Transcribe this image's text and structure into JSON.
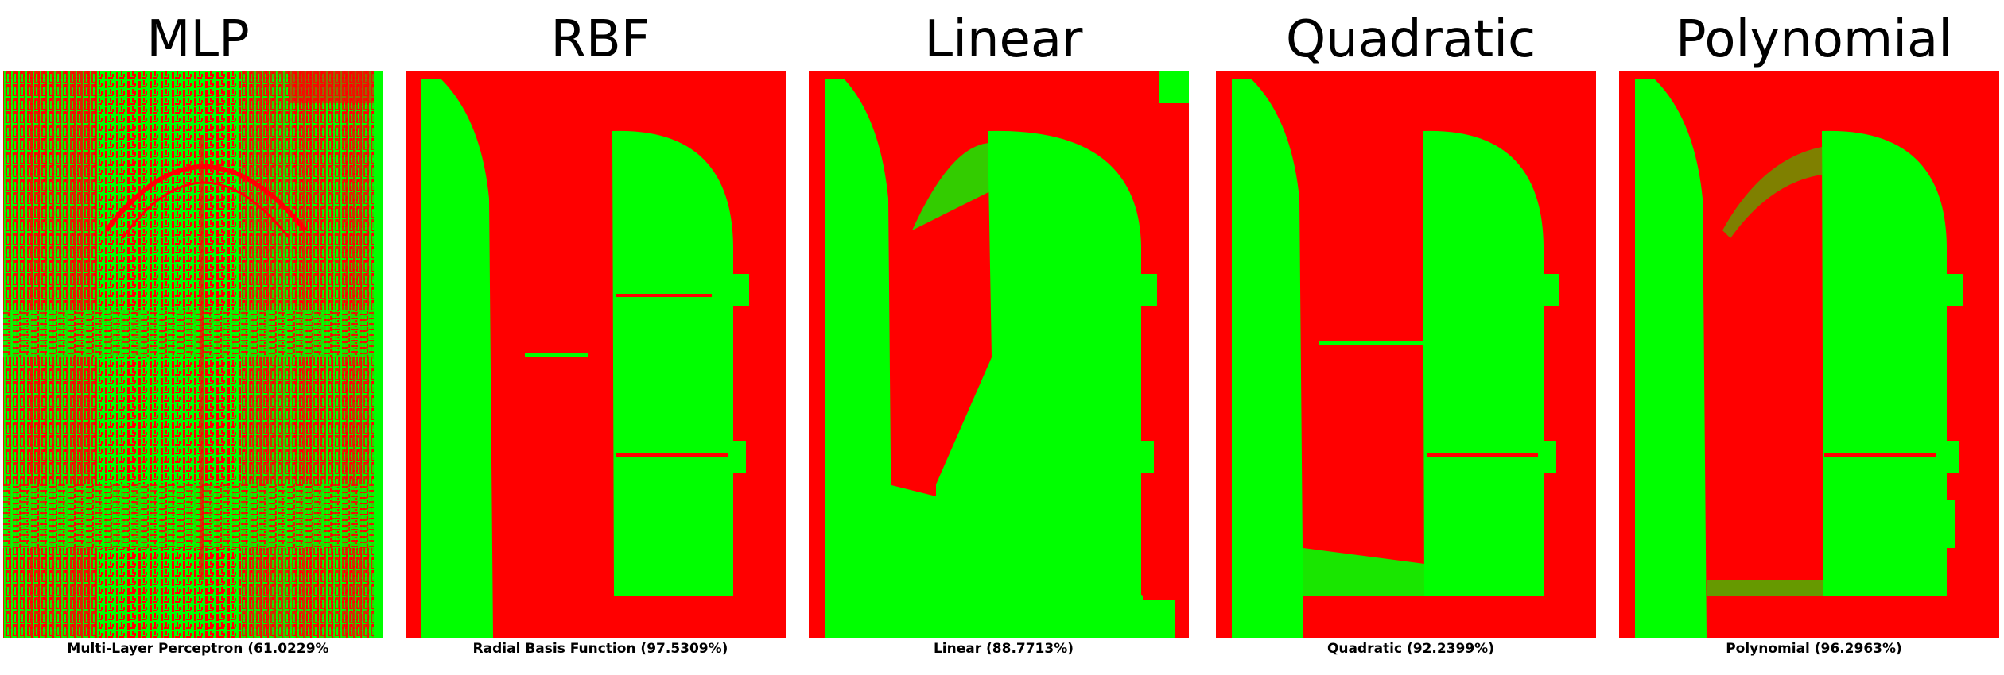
{
  "figure": {
    "panels": [
      {
        "title": "MLP",
        "caption": "Multi-Layer Perceptron (61.0229%",
        "style": "noisy"
      },
      {
        "title": "RBF",
        "caption": "Radial Basis Function (97.5309%)",
        "style": "clean"
      },
      {
        "title": "Linear",
        "caption": "Linear (88.7713%)",
        "style": "linear"
      },
      {
        "title": "Quadratic",
        "caption": "Quadratic (92.2399%)",
        "style": "quadratic"
      },
      {
        "title": "Polynomial",
        "caption": "Polynomial (96.2963%)",
        "style": "polynomial"
      }
    ],
    "colors": {
      "background_class": "#ff0000",
      "foreground_class": "#00ff00"
    }
  }
}
